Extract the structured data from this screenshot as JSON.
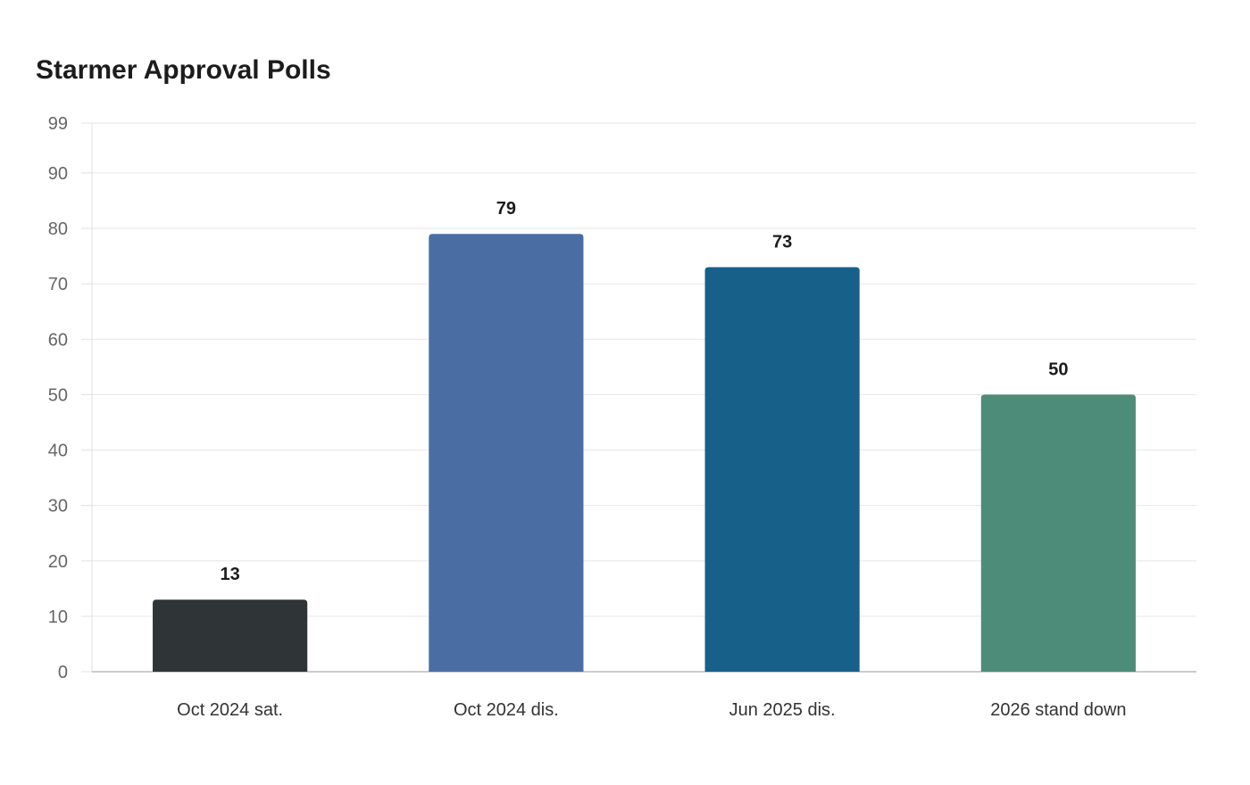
{
  "chart_data": {
    "type": "bar",
    "title": "Starmer Approval Polls",
    "xlabel": "",
    "ylabel": "",
    "categories": [
      "Oct 2024 sat.",
      "Oct 2024 dis.",
      "Jun 2025 dis.",
      "2026 stand down"
    ],
    "values": [
      13,
      79,
      73,
      50
    ],
    "bar_colors": [
      "#2f3437",
      "#4a6ea3",
      "#176089",
      "#4e8c7a"
    ],
    "ylim": [
      0,
      99
    ],
    "yticks": [
      0,
      10,
      20,
      30,
      40,
      50,
      60,
      70,
      80,
      90,
      99
    ],
    "grid": true,
    "legend": "none",
    "data_labels": true
  }
}
